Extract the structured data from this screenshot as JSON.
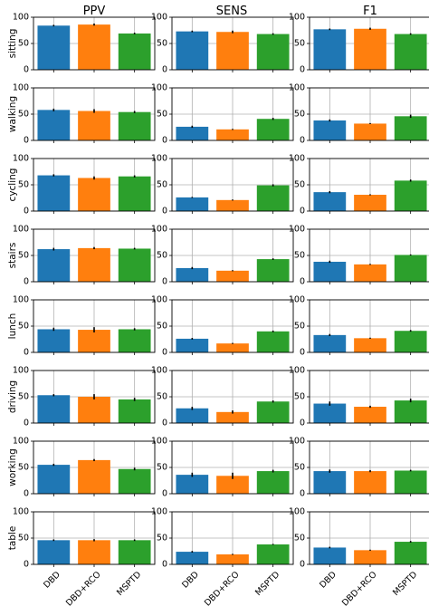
{
  "colors": {
    "DBD": "#1f77b4",
    "DBD+RCO": "#ff7f0e",
    "MSPTD": "#2ca02c"
  },
  "chart_data": {
    "type": "bar",
    "grid": true,
    "ylim": [
      0,
      100
    ],
    "yticks": [
      "0",
      "50",
      "100"
    ],
    "categories": [
      "DBD",
      "DBD+RCO",
      "MSPTD"
    ],
    "columns": [
      "PPV",
      "SENS",
      "F1"
    ],
    "rows": [
      "sitting",
      "walking",
      "cycling",
      "stairs",
      "lunch",
      "driving",
      "working",
      "table"
    ],
    "values": {
      "sitting": {
        "PPV": [
          84,
          86,
          69
        ],
        "SENS": [
          73,
          72,
          68
        ],
        "F1": [
          77,
          78,
          68
        ]
      },
      "walking": {
        "PPV": [
          58,
          56,
          54
        ],
        "SENS": [
          26,
          21,
          41
        ],
        "F1": [
          38,
          32,
          46
        ]
      },
      "cycling": {
        "PPV": [
          68,
          63,
          66
        ],
        "SENS": [
          26,
          21,
          49
        ],
        "F1": [
          36,
          31,
          58
        ]
      },
      "stairs": {
        "PPV": [
          62,
          64,
          63
        ],
        "SENS": [
          26,
          21,
          43
        ],
        "F1": [
          38,
          33,
          51
        ]
      },
      "lunch": {
        "PPV": [
          44,
          43,
          44
        ],
        "SENS": [
          26,
          17,
          40
        ],
        "F1": [
          33,
          27,
          41
        ]
      },
      "driving": {
        "PPV": [
          53,
          50,
          45
        ],
        "SENS": [
          28,
          21,
          41
        ],
        "F1": [
          37,
          31,
          43
        ]
      },
      "working": {
        "PPV": [
          55,
          64,
          47
        ],
        "SENS": [
          36,
          34,
          43
        ],
        "F1": [
          43,
          43,
          44
        ]
      },
      "table": {
        "PPV": [
          46,
          46,
          46
        ],
        "SENS": [
          24,
          19,
          38
        ],
        "F1": [
          32,
          27,
          43
        ]
      }
    },
    "errors": {
      "sitting": {
        "PPV": [
          1.5,
          2,
          1.5
        ],
        "SENS": [
          1.5,
          2.5,
          1.5
        ],
        "F1": [
          1.5,
          2,
          1.5
        ]
      },
      "walking": {
        "PPV": [
          2.5,
          3.5,
          2
        ],
        "SENS": [
          2,
          1,
          2
        ],
        "F1": [
          2,
          1,
          3
        ]
      },
      "cycling": {
        "PPV": [
          2,
          3,
          2
        ],
        "SENS": [
          1,
          1,
          2
        ],
        "F1": [
          2,
          1,
          2
        ]
      },
      "stairs": {
        "PPV": [
          2.5,
          2,
          1.5
        ],
        "SENS": [
          2,
          1,
          1.5
        ],
        "F1": [
          2,
          1,
          1
        ]
      },
      "lunch": {
        "PPV": [
          3,
          5,
          2
        ],
        "SENS": [
          1.5,
          1,
          1.5
        ],
        "F1": [
          2,
          1,
          1.5
        ]
      },
      "driving": {
        "PPV": [
          2,
          5,
          3
        ],
        "SENS": [
          3,
          3,
          2
        ],
        "F1": [
          4,
          2,
          3.5
        ]
      },
      "working": {
        "PPV": [
          2,
          2,
          2.5
        ],
        "SENS": [
          4,
          6,
          2.5
        ],
        "F1": [
          3,
          2,
          1.5
        ]
      },
      "table": {
        "PPV": [
          1.5,
          2,
          1.5
        ],
        "SENS": [
          1.5,
          1,
          1
        ],
        "F1": [
          1.5,
          1,
          1.5
        ]
      }
    }
  }
}
